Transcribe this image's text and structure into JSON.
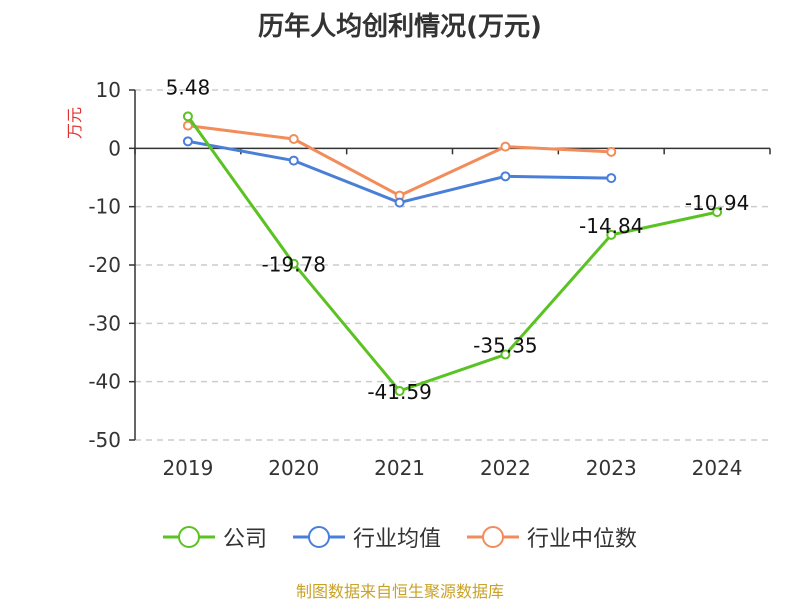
{
  "chart_data": {
    "type": "line",
    "title": "历年人均创利情况(万元)",
    "ylabel": "万元",
    "xlabel": "",
    "categories": [
      "2019",
      "2020",
      "2021",
      "2022",
      "2023",
      "2024"
    ],
    "ylim": [
      -50,
      10
    ],
    "yticks": [
      10,
      0,
      -10,
      -20,
      -30,
      -40,
      -50
    ],
    "grid": true,
    "legend_position": "bottom",
    "series": [
      {
        "name": "公司",
        "color": "#5ac223",
        "values": [
          5.48,
          -19.78,
          -41.59,
          -35.35,
          -14.84,
          -10.94
        ],
        "labels": [
          "5.48",
          "-19.78",
          "-41.59",
          "-35.35",
          "-14.84",
          "-10.94"
        ]
      },
      {
        "name": "行业均值",
        "color": "#4a7fd8",
        "values": [
          1.2,
          -2.1,
          -9.3,
          -4.8,
          -5.1,
          null
        ]
      },
      {
        "name": "行业中位数",
        "color": "#f28c5a",
        "values": [
          3.9,
          1.6,
          -8.1,
          0.3,
          -0.6,
          null
        ]
      }
    ]
  },
  "footer": {
    "source": "制图数据来自恒生聚源数据库"
  }
}
